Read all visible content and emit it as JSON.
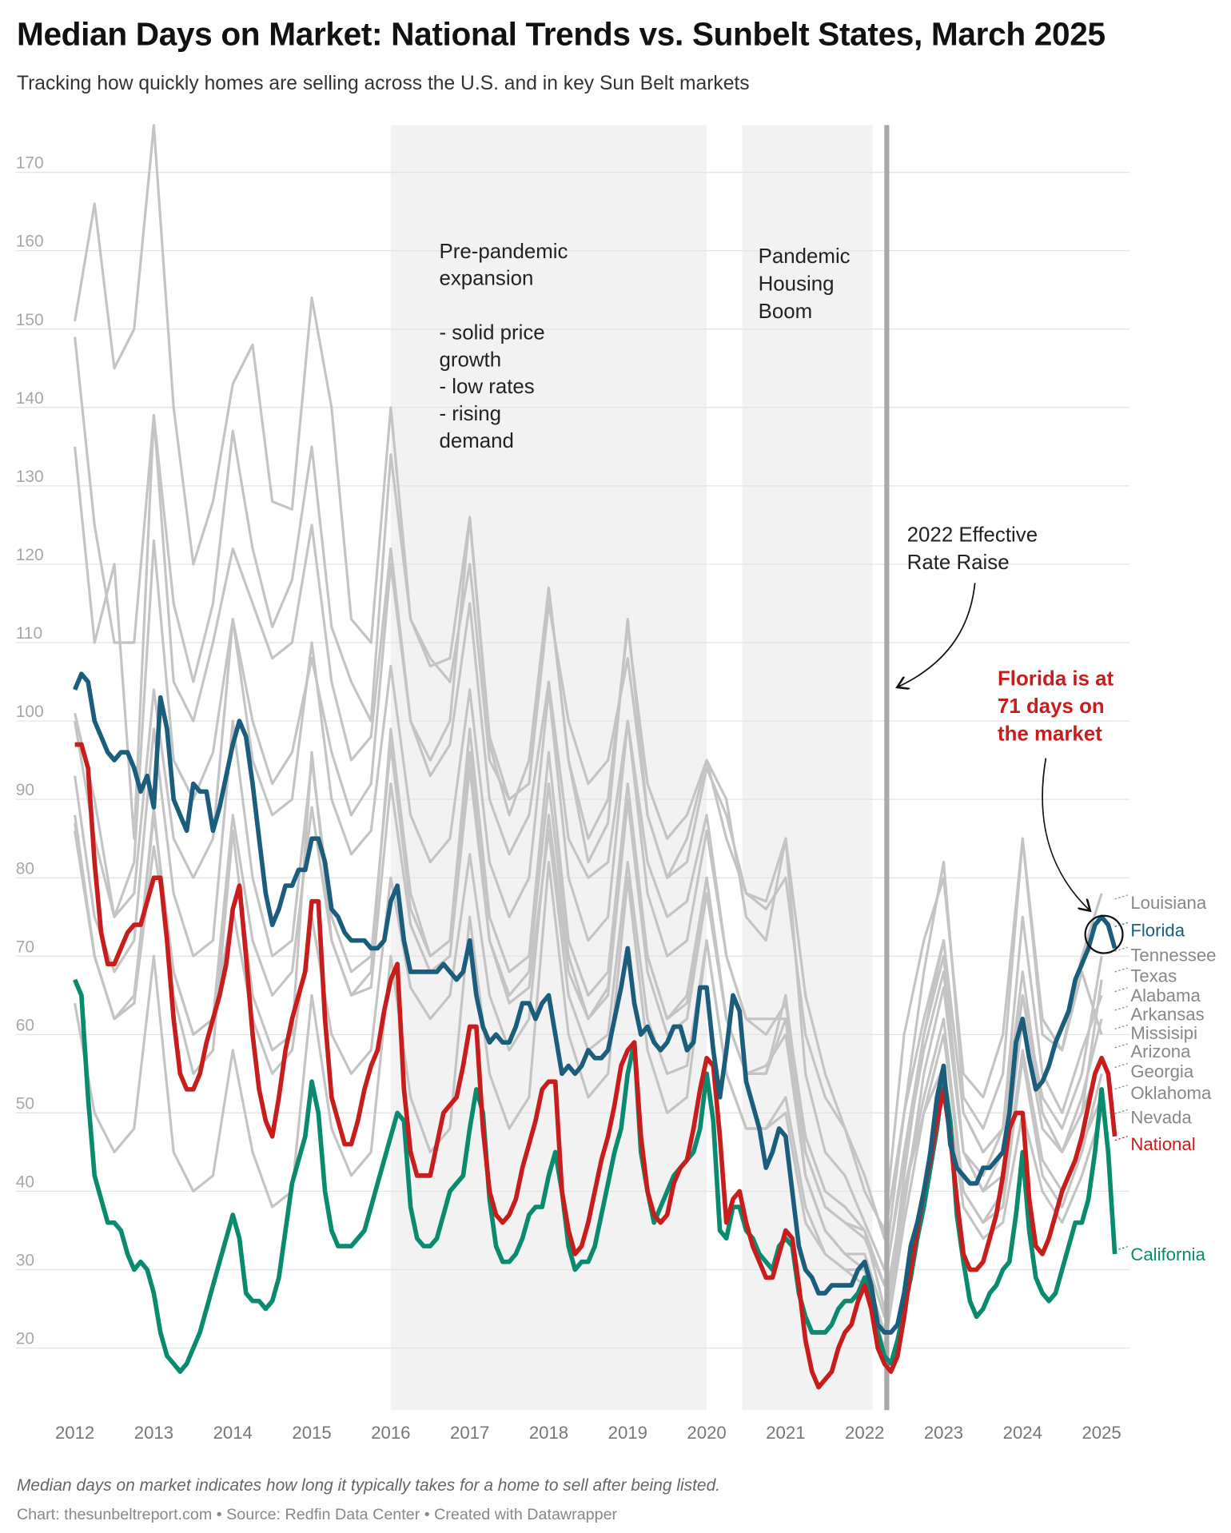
{
  "title": "Median Days on Market: National Trends vs. Sunbelt States, March 2025",
  "subtitle": "Tracking how quickly homes are selling across the U.S. and in key Sun Belt markets",
  "note": "Median days on market indicates how long it typically takes for a home to sell after being listed.",
  "credit": "Chart: thesunbeltreport.com • Source: Redfin Data Center • Created with Datawrapper",
  "colors": {
    "national": "#c71e1d",
    "florida": "#1b5e7c",
    "california": "#0a8a6e",
    "other": "#c4c4c4",
    "label_gray": "#888888"
  },
  "chart_data": {
    "type": "line",
    "title": "Median Days on Market: National Trends vs. Sunbelt States, March 2025",
    "xlabel": "",
    "ylabel": "Median days on market",
    "xlim": [
      2012,
      2025.25
    ],
    "ylim": [
      13,
      177
    ],
    "x_ticks": [
      "2012",
      "2013",
      "2014",
      "2015",
      "2016",
      "2017",
      "2018",
      "2019",
      "2020",
      "2021",
      "2022",
      "2023",
      "2024",
      "2025"
    ],
    "y_ticks": [
      20,
      30,
      40,
      50,
      60,
      70,
      80,
      90,
      100,
      110,
      120,
      130,
      140,
      150,
      160,
      170
    ],
    "grid": "horizontal",
    "start": "2012-01",
    "shaded_periods": [
      {
        "from": 2016.0,
        "to": 2020.0,
        "label": "Pre-pandemic expansion\n\n- solid price growth\n- low rates\n- rising demand"
      },
      {
        "from": 2020.45,
        "to": 2022.1,
        "label": "Pandemic Housing Boom"
      }
    ],
    "vertical_marker": {
      "x": 2022.28,
      "label": "2022 Effective Rate Raise"
    },
    "callout": {
      "label": "Florida is at 71 days on the market",
      "value": 71
    },
    "highlight_series": [
      {
        "name": "Florida",
        "key": "florida",
        "step_months": 1,
        "values": [
          104,
          106,
          105,
          100,
          98,
          96,
          95,
          96,
          96,
          94,
          91,
          93,
          89,
          103,
          99,
          90,
          88,
          86,
          92,
          91,
          91,
          86,
          89,
          93,
          97,
          100,
          98,
          92,
          85,
          78,
          74,
          76,
          79,
          79,
          81,
          81,
          85,
          85,
          82,
          76,
          75,
          73,
          72,
          72,
          72,
          71,
          71,
          72,
          77,
          79,
          72,
          68,
          68,
          68,
          68,
          68,
          69,
          68,
          67,
          68,
          72,
          65,
          61,
          59,
          60,
          59,
          59,
          61,
          64,
          64,
          62,
          64,
          65,
          60,
          55,
          56,
          55,
          56,
          58,
          57,
          57,
          58,
          62,
          66,
          71,
          64,
          60,
          61,
          59,
          58,
          59,
          61,
          61,
          58,
          59,
          66,
          66,
          58,
          52,
          58,
          65,
          63,
          54,
          51,
          48,
          43,
          45,
          48,
          47,
          40,
          33,
          30,
          29,
          27,
          27,
          28,
          28,
          28,
          28,
          30,
          31,
          28,
          23,
          22,
          22,
          23,
          27,
          33,
          36,
          40,
          45,
          52,
          56,
          46,
          43,
          42,
          41,
          41,
          43,
          43,
          44,
          45,
          50,
          59,
          62,
          57,
          53,
          54,
          56,
          59,
          61,
          63,
          67,
          69,
          71,
          74,
          75,
          74,
          71
        ]
      },
      {
        "name": "National",
        "key": "national",
        "step_months": 1,
        "values": [
          97,
          97,
          94,
          82,
          73,
          69,
          69,
          71,
          73,
          74,
          74,
          77,
          80,
          80,
          72,
          62,
          55,
          53,
          53,
          55,
          59,
          62,
          65,
          69,
          76,
          79,
          70,
          60,
          53,
          49,
          47,
          52,
          58,
          62,
          65,
          68,
          77,
          77,
          62,
          52,
          49,
          46,
          46,
          49,
          53,
          56,
          58,
          63,
          67,
          69,
          53,
          45,
          42,
          42,
          42,
          46,
          50,
          51,
          52,
          56,
          61,
          61,
          48,
          40,
          37,
          36,
          37,
          39,
          43,
          46,
          49,
          53,
          54,
          54,
          40,
          35,
          32,
          33,
          36,
          40,
          44,
          47,
          51,
          56,
          58,
          59,
          47,
          40,
          37,
          36,
          37,
          41,
          43,
          44,
          48,
          53,
          57,
          56,
          47,
          36,
          39,
          40,
          36,
          33,
          31,
          29,
          29,
          32,
          35,
          34,
          28,
          21,
          17,
          15,
          16,
          17,
          20,
          22,
          23,
          26,
          28,
          25,
          20,
          18,
          17,
          19,
          24,
          30,
          35,
          40,
          44,
          49,
          53,
          47,
          39,
          32,
          30,
          30,
          31,
          34,
          37,
          42,
          48,
          50,
          50,
          39,
          33,
          32,
          34,
          37,
          40,
          42,
          44,
          47,
          51,
          55,
          57,
          55,
          47
        ]
      },
      {
        "name": "California",
        "key": "california",
        "step_months": 1,
        "values": [
          67,
          65,
          52,
          42,
          39,
          36,
          36,
          35,
          32,
          30,
          31,
          30,
          27,
          22,
          19,
          18,
          17,
          18,
          20,
          22,
          25,
          28,
          31,
          34,
          37,
          34,
          27,
          26,
          26,
          25,
          26,
          29,
          35,
          41,
          44,
          47,
          54,
          50,
          40,
          35,
          33,
          33,
          33,
          34,
          35,
          38,
          41,
          44,
          47,
          50,
          49,
          38,
          34,
          33,
          33,
          34,
          37,
          40,
          41,
          42,
          48,
          53,
          50,
          39,
          33,
          31,
          31,
          32,
          34,
          37,
          38,
          38,
          42,
          45,
          40,
          33,
          30,
          31,
          31,
          33,
          37,
          41,
          45,
          48,
          55,
          59,
          45,
          40,
          36,
          38,
          40,
          42,
          43,
          44,
          45,
          48,
          55,
          49,
          35,
          34,
          38,
          38,
          35,
          34,
          32,
          31,
          30,
          33,
          34,
          33,
          27,
          24,
          22,
          22,
          22,
          23,
          25,
          26,
          26,
          27,
          29,
          26,
          22,
          19,
          18,
          21,
          25,
          29,
          34,
          38,
          43,
          48,
          55,
          49,
          37,
          31,
          26,
          24,
          25,
          27,
          28,
          30,
          31,
          37,
          45,
          35,
          29,
          27,
          26,
          27,
          30,
          33,
          36,
          36,
          39,
          45,
          53,
          45,
          32
        ]
      }
    ],
    "other_series": [
      {
        "name": "Louisiana",
        "step_months": 3,
        "values": [
          149,
          125,
          110,
          110,
          139,
          115,
          105,
          115,
          137,
          122,
          112,
          118,
          135,
          112,
          105,
          100,
          134,
          113,
          108,
          105,
          120,
          95,
          90,
          92,
          115,
          100,
          92,
          95,
          108,
          88,
          80,
          82,
          94,
          88,
          78,
          77,
          85,
          55,
          45,
          42,
          36,
          30,
          50,
          68,
          82,
          52,
          48,
          55,
          85,
          62,
          58,
          70,
          78
        ]
      },
      {
        "name": "Tennessee",
        "step_months": 3,
        "values": [
          101,
          90,
          75,
          82,
          123,
          95,
          90,
          96,
          113,
          100,
          92,
          96,
          108,
          96,
          88,
          92,
          120,
          100,
          93,
          97,
          115,
          90,
          83,
          88,
          105,
          85,
          80,
          82,
          100,
          82,
          75,
          77,
          88,
          70,
          62,
          62,
          62,
          45,
          38,
          36,
          34,
          28,
          45,
          60,
          70,
          45,
          40,
          45,
          65,
          52,
          48,
          55,
          70
        ]
      },
      {
        "name": "Texas",
        "step_months": 3,
        "values": [
          88,
          70,
          62,
          65,
          88,
          68,
          60,
          62,
          76,
          62,
          55,
          58,
          75,
          60,
          55,
          58,
          80,
          66,
          62,
          65,
          83,
          65,
          58,
          62,
          88,
          68,
          62,
          66,
          90,
          70,
          62,
          65,
          80,
          62,
          55,
          56,
          60,
          42,
          35,
          32,
          30,
          22,
          38,
          55,
          66,
          45,
          40,
          42,
          62,
          48,
          45,
          50,
          67
        ]
      },
      {
        "name": "Alabama",
        "step_months": 3,
        "values": [
          135,
          110,
          120,
          85,
          139,
          105,
          100,
          110,
          122,
          115,
          108,
          110,
          125,
          105,
          95,
          98,
          122,
          100,
          95,
          100,
          126,
          98,
          90,
          92,
          117,
          95,
          85,
          90,
          112,
          92,
          85,
          88,
          95,
          85,
          78,
          76,
          80,
          60,
          52,
          48,
          42,
          34,
          50,
          62,
          72,
          50,
          45,
          48,
          75,
          55,
          50,
          58,
          65
        ]
      },
      {
        "name": "Arkansas",
        "step_months": 3,
        "values": [
          100,
          85,
          75,
          78,
          104,
          85,
          80,
          85,
          113,
          95,
          88,
          90,
          110,
          90,
          83,
          86,
          107,
          88,
          82,
          85,
          104,
          82,
          75,
          80,
          104,
          80,
          72,
          75,
          100,
          78,
          70,
          72,
          86,
          70,
          62,
          60,
          64,
          47,
          40,
          38,
          35,
          28,
          44,
          58,
          68,
          45,
          42,
          48,
          68,
          50,
          45,
          52,
          62
        ]
      },
      {
        "name": "Missisipi",
        "step_months": 3,
        "values": [
          151,
          166,
          145,
          150,
          176,
          140,
          120,
          128,
          143,
          148,
          128,
          127,
          154,
          140,
          113,
          110,
          140,
          113,
          107,
          108,
          126,
          97,
          88,
          95,
          117,
          95,
          82,
          87,
          113,
          88,
          80,
          85,
          95,
          90,
          75,
          72,
          85,
          65,
          55,
          48,
          40,
          35,
          60,
          72,
          80,
          55,
          52,
          60,
          85,
          60,
          58,
          68,
          60
        ]
      },
      {
        "name": "Arizona",
        "step_months": 3,
        "values": [
          86,
          70,
          62,
          64,
          84,
          68,
          60,
          62,
          88,
          72,
          65,
          68,
          89,
          72,
          65,
          66,
          92,
          74,
          68,
          70,
          94,
          72,
          64,
          66,
          86,
          65,
          58,
          60,
          82,
          62,
          55,
          56,
          72,
          55,
          48,
          48,
          52,
          38,
          32,
          30,
          30,
          22,
          42,
          60,
          72,
          50,
          45,
          48,
          65,
          50,
          45,
          50,
          57
        ]
      },
      {
        "name": "Georgia",
        "step_months": 3,
        "values": [
          93,
          75,
          68,
          72,
          99,
          78,
          70,
          72,
          100,
          80,
          70,
          72,
          95,
          75,
          68,
          70,
          97,
          76,
          70,
          72,
          96,
          72,
          65,
          68,
          92,
          70,
          62,
          65,
          90,
          68,
          60,
          62,
          78,
          62,
          55,
          55,
          62,
          42,
          35,
          32,
          32,
          24,
          40,
          52,
          62,
          40,
          36,
          38,
          57,
          42,
          38,
          45,
          55
        ]
      },
      {
        "name": "Oklahoma",
        "step_months": 3,
        "values": [
          87,
          70,
          62,
          64,
          89,
          65,
          55,
          58,
          86,
          65,
          58,
          60,
          96,
          72,
          65,
          68,
          99,
          78,
          70,
          72,
          99,
          75,
          68,
          70,
          96,
          72,
          65,
          68,
          92,
          70,
          62,
          64,
          80,
          62,
          55,
          55,
          65,
          45,
          38,
          36,
          35,
          25,
          40,
          50,
          60,
          40,
          36,
          40,
          58,
          44,
          40,
          46,
          52
        ]
      },
      {
        "name": "Nevada",
        "step_months": 3,
        "values": [
          64,
          50,
          45,
          48,
          70,
          45,
          40,
          42,
          58,
          45,
          38,
          40,
          65,
          48,
          42,
          45,
          70,
          52,
          45,
          48,
          75,
          55,
          48,
          52,
          82,
          60,
          52,
          55,
          80,
          58,
          50,
          52,
          72,
          55,
          48,
          48,
          50,
          36,
          32,
          30,
          28,
          20,
          36,
          50,
          56,
          38,
          34,
          36,
          50,
          40,
          36,
          42,
          50
        ]
      }
    ],
    "end_labels": [
      "Louisiana",
      "Florida",
      "Tennessee",
      "Texas",
      "Alabama",
      "Arkansas",
      "Missisipi",
      "Arizona",
      "Georgia",
      "Oklahoma",
      "Nevada",
      "National",
      "California"
    ]
  }
}
